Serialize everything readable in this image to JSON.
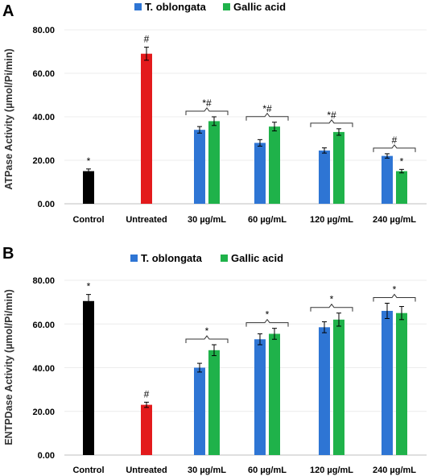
{
  "panel_labels": [
    "A",
    "B"
  ],
  "chart_data": [
    {
      "type": "bar",
      "panel": "A",
      "ylabel": "ATPase Activity (µmol/Pi/min)",
      "ylim": [
        0,
        80
      ],
      "yticks": [
        "0.00",
        "20.00",
        "40.00",
        "60.00",
        "80.00"
      ],
      "categories": [
        "Control",
        "Untreated",
        "30 µg/mL",
        "60 µg/mL",
        "120 µg/mL",
        "240 µg/mL"
      ],
      "legend": {
        "placement": "top",
        "entries": [
          "T. oblongata",
          "Gallic acid"
        ]
      },
      "colors": {
        "control": "#000000",
        "untreated": "#e31a1c",
        "t_oblongata": "#2e75d4",
        "gallic_acid": "#1fb24a"
      },
      "series": [
        {
          "name": "Control",
          "values": [
            15,
            null,
            null,
            null,
            null,
            null
          ],
          "errors": [
            1,
            null,
            null,
            null,
            null,
            null
          ]
        },
        {
          "name": "Untreated",
          "values": [
            null,
            69,
            null,
            null,
            null,
            null
          ],
          "errors": [
            null,
            3,
            null,
            null,
            null,
            null
          ]
        },
        {
          "name": "T. oblongata",
          "values": [
            null,
            null,
            34,
            28,
            24.5,
            22
          ],
          "errors": [
            null,
            null,
            1.5,
            1.5,
            1.2,
            1
          ]
        },
        {
          "name": "Gallic acid",
          "values": [
            null,
            null,
            38,
            35.5,
            33,
            15
          ],
          "errors": [
            null,
            null,
            2,
            2,
            1.5,
            0.8
          ]
        }
      ],
      "annotations": [
        {
          "text": "*",
          "category": "Control",
          "series": "Control"
        },
        {
          "text": "#",
          "category": "Untreated",
          "series": "Untreated"
        },
        {
          "text": "*#",
          "category": "30 µg/mL",
          "bracket": true
        },
        {
          "text": "*#",
          "category": "60 µg/mL",
          "bracket": true
        },
        {
          "text": "*#",
          "category": "120 µg/mL",
          "bracket": true
        },
        {
          "text": "#",
          "category": "240 µg/mL",
          "bracket": true
        },
        {
          "text": "*",
          "category": "240 µg/mL",
          "series": "Gallic acid"
        }
      ]
    },
    {
      "type": "bar",
      "panel": "B",
      "ylabel": "ENTPDase Activity (µmol/Pi/min)",
      "ylim": [
        0,
        80
      ],
      "yticks": [
        "0.00",
        "20.00",
        "40.00",
        "60.00",
        "80.00"
      ],
      "categories": [
        "Control",
        "Untreated",
        "30 µg/mL",
        "60 µg/mL",
        "120 µg/mL",
        "240 µg/mL"
      ],
      "legend": {
        "placement": "top",
        "entries": [
          "T. oblongata",
          "Gallic acid"
        ]
      },
      "colors": {
        "control": "#000000",
        "untreated": "#e31a1c",
        "t_oblongata": "#2e75d4",
        "gallic_acid": "#1fb24a"
      },
      "series": [
        {
          "name": "Control",
          "values": [
            70.5,
            null,
            null,
            null,
            null,
            null
          ],
          "errors": [
            3,
            null,
            null,
            null,
            null,
            null
          ]
        },
        {
          "name": "Untreated",
          "values": [
            null,
            23,
            null,
            null,
            null,
            null
          ],
          "errors": [
            null,
            1.2,
            null,
            null,
            null,
            null
          ]
        },
        {
          "name": "T. oblongata",
          "values": [
            null,
            null,
            40,
            53,
            58.5,
            66
          ],
          "errors": [
            null,
            null,
            2,
            2.5,
            2.5,
            3.5
          ]
        },
        {
          "name": "Gallic acid",
          "values": [
            null,
            null,
            48,
            55.5,
            62,
            65
          ],
          "errors": [
            null,
            null,
            2.5,
            2.5,
            3,
            3
          ]
        }
      ],
      "annotations": [
        {
          "text": "*",
          "category": "Control",
          "series": "Control"
        },
        {
          "text": "#",
          "category": "Untreated",
          "series": "Untreated"
        },
        {
          "text": "*",
          "category": "30 µg/mL",
          "bracket": true
        },
        {
          "text": "*",
          "category": "60 µg/mL",
          "bracket": true
        },
        {
          "text": "*",
          "category": "120 µg/mL",
          "bracket": true
        },
        {
          "text": "*",
          "category": "240 µg/mL",
          "bracket": true
        }
      ]
    }
  ]
}
